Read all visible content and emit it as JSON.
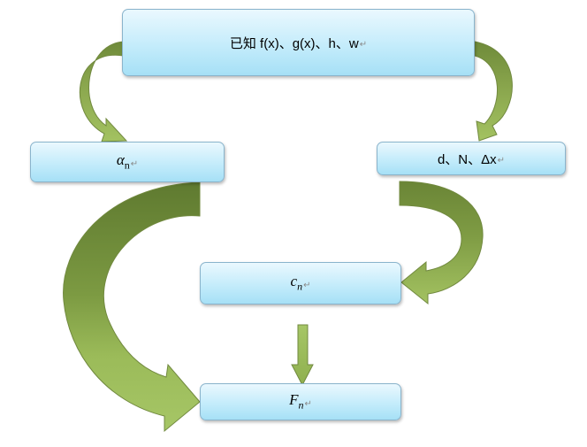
{
  "boxes": {
    "given": {
      "text": "已知 f(x)、g(x)、h、w",
      "mark": "↵"
    },
    "alpha": {
      "symbol": "α",
      "sub": "n",
      "mark": "↵"
    },
    "params": {
      "text": "d、N、Δx",
      "mark": "↵"
    },
    "c_n": {
      "symbol": "c",
      "sub": "n",
      "mark": "↵"
    },
    "F_n": {
      "symbol": "F",
      "sub": "n",
      "mark": "↵"
    }
  },
  "colors": {
    "arrow_light": "#9bbb59",
    "arrow_dark": "#6e8a3a",
    "arrow_outline": "#71893f",
    "box_top": "#eaf8fe",
    "box_bottom": "#a6e0f6",
    "box_border": "#8ab4cc"
  }
}
